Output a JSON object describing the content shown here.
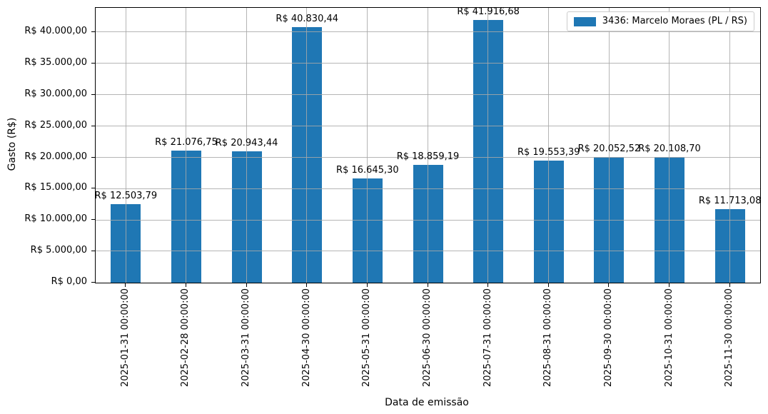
{
  "chart_data": {
    "type": "bar",
    "title": "",
    "xlabel": "Data de emissão",
    "ylabel": "Gasto (R$)",
    "categories": [
      "2025-01-31 00:00:00",
      "2025-02-28 00:00:00",
      "2025-03-31 00:00:00",
      "2025-04-30 00:00:00",
      "2025-05-31 00:00:00",
      "2025-06-30 00:00:00",
      "2025-07-31 00:00:00",
      "2025-08-31 00:00:00",
      "2025-09-30 00:00:00",
      "2025-10-31 00:00:00",
      "2025-11-30 00:00:00"
    ],
    "series": [
      {
        "name": "3436: Marcelo Moraes (PL / RS)",
        "color": "#1f77b4",
        "values": [
          12503.79,
          21076.75,
          20943.44,
          40830.44,
          16645.3,
          18859.19,
          41916.68,
          19553.39,
          20052.52,
          20108.7,
          11713.08
        ],
        "value_labels": [
          "R$ 12.503,79",
          "R$ 21.076,75",
          "R$ 20.943,44",
          "R$ 40.830,44",
          "R$ 16.645,30",
          "R$ 18.859,19",
          "R$ 41.916,68",
          "R$ 19.553,39",
          "R$ 20.052,52",
          "R$ 20.108,70",
          "R$ 11.713,08"
        ]
      }
    ],
    "y_ticks": [
      {
        "value": 0,
        "label": "R$ 0,00"
      },
      {
        "value": 5000,
        "label": "R$ 5.000,00"
      },
      {
        "value": 10000,
        "label": "R$ 10.000,00"
      },
      {
        "value": 15000,
        "label": "R$ 15.000,00"
      },
      {
        "value": 20000,
        "label": "R$ 20.000,00"
      },
      {
        "value": 25000,
        "label": "R$ 25.000,00"
      },
      {
        "value": 30000,
        "label": "R$ 30.000,00"
      },
      {
        "value": 35000,
        "label": "R$ 35.000,00"
      },
      {
        "value": 40000,
        "label": "R$ 40.000,00"
      }
    ],
    "ylim": [
      0,
      43900
    ],
    "grid": true,
    "legend_position": "upper right"
  }
}
